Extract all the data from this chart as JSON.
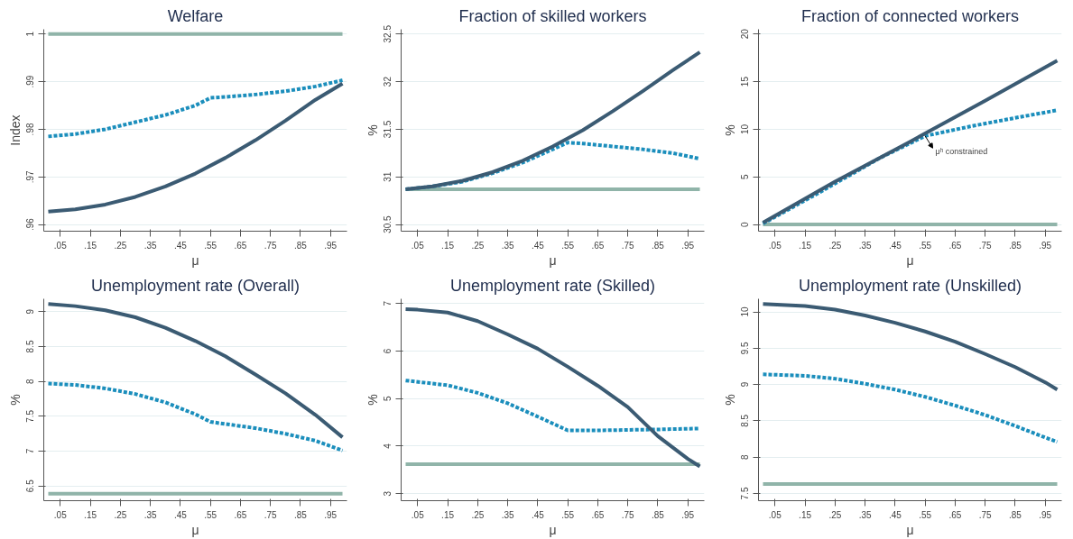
{
  "chart_data": [
    {
      "type": "line",
      "title": "Welfare",
      "xlabel": "μ",
      "ylabel": "Index",
      "grid": "y",
      "xlim": [
        -0.005,
        1.005
      ],
      "xticks": [
        {
          "value": 0.05,
          "label": ".05"
        },
        {
          "value": 0.15,
          "label": ".15"
        },
        {
          "value": 0.25,
          "label": ".25"
        },
        {
          "value": 0.35,
          "label": ".35"
        },
        {
          "value": 0.45,
          "label": ".45"
        },
        {
          "value": 0.55,
          "label": ".55"
        },
        {
          "value": 0.65,
          "label": ".65"
        },
        {
          "value": 0.75,
          "label": ".75"
        },
        {
          "value": 0.85,
          "label": ".85"
        },
        {
          "value": 0.95,
          "label": ".95"
        }
      ],
      "ylim": [
        0.9586,
        1.001
      ],
      "yticks": [
        {
          "value": 0.96,
          "label": ".96"
        },
        {
          "value": 0.97,
          "label": ".97"
        },
        {
          "value": 0.98,
          "label": ".98"
        },
        {
          "value": 0.99,
          "label": ".99"
        },
        1
      ],
      "series": [
        {
          "color": "#90b4a9",
          "line_style": "solid",
          "x": [
            0.01,
            0.99
          ],
          "values": [
            1.0,
            1.0
          ]
        },
        {
          "color": "#1b8ebc",
          "line_style": "dashed",
          "x": [
            0.01,
            0.1,
            0.2,
            0.3,
            0.4,
            0.5,
            0.55,
            0.6,
            0.7,
            0.8,
            0.9,
            0.99
          ],
          "values": [
            0.9785,
            0.979,
            0.98,
            0.9815,
            0.983,
            0.985,
            0.9866,
            0.9868,
            0.9873,
            0.988,
            0.989,
            0.9903
          ]
        },
        {
          "color": "#3b5b73",
          "line_style": "solid",
          "x": [
            0.01,
            0.1,
            0.2,
            0.3,
            0.4,
            0.5,
            0.6,
            0.7,
            0.8,
            0.9,
            0.99
          ],
          "values": [
            0.9627,
            0.9632,
            0.9642,
            0.9658,
            0.968,
            0.9707,
            0.974,
            0.9777,
            0.9818,
            0.9862,
            0.9896
          ]
        }
      ]
    },
    {
      "type": "line",
      "title": "Fraction of skilled workers",
      "xlabel": "μ",
      "ylabel": "%",
      "grid": "y",
      "xlim": [
        -0.005,
        1.005
      ],
      "xticks": [
        {
          "value": 0.05,
          "label": ".05"
        },
        {
          "value": 0.15,
          "label": ".15"
        },
        {
          "value": 0.25,
          "label": ".25"
        },
        {
          "value": 0.35,
          "label": ".35"
        },
        {
          "value": 0.45,
          "label": ".45"
        },
        {
          "value": 0.55,
          "label": ".55"
        },
        {
          "value": 0.65,
          "label": ".65"
        },
        {
          "value": 0.75,
          "label": ".75"
        },
        {
          "value": 0.85,
          "label": ".85"
        },
        {
          "value": 0.95,
          "label": ".95"
        }
      ],
      "ylim": [
        30.43,
        32.55
      ],
      "yticks": [
        30.5,
        31,
        31.5,
        32,
        32.5
      ],
      "series": [
        {
          "color": "#90b4a9",
          "line_style": "solid",
          "x": [
            0.01,
            0.99
          ],
          "values": [
            30.87,
            30.87
          ]
        },
        {
          "color": "#1b8ebc",
          "line_style": "dashed",
          "x": [
            0.01,
            0.1,
            0.2,
            0.3,
            0.4,
            0.5,
            0.55,
            0.6,
            0.7,
            0.8,
            0.9,
            0.99
          ],
          "values": [
            30.87,
            30.9,
            30.95,
            31.04,
            31.15,
            31.29,
            31.36,
            31.35,
            31.32,
            31.29,
            31.25,
            31.19
          ]
        },
        {
          "color": "#3b5b73",
          "line_style": "solid",
          "x": [
            0.01,
            0.1,
            0.2,
            0.3,
            0.4,
            0.5,
            0.6,
            0.7,
            0.8,
            0.9,
            0.99
          ],
          "values": [
            30.87,
            30.9,
            30.96,
            31.05,
            31.17,
            31.32,
            31.49,
            31.69,
            31.9,
            32.12,
            32.31
          ]
        }
      ]
    },
    {
      "type": "line",
      "title": "Fraction of connected workers",
      "xlabel": "μ",
      "ylabel": "%",
      "grid": "y",
      "xlim": [
        -0.005,
        1.005
      ],
      "xticks": [
        {
          "value": 0.05,
          "label": ".05"
        },
        {
          "value": 0.15,
          "label": ".15"
        },
        {
          "value": 0.25,
          "label": ".25"
        },
        {
          "value": 0.35,
          "label": ".35"
        },
        {
          "value": 0.45,
          "label": ".45"
        },
        {
          "value": 0.55,
          "label": ".55"
        },
        {
          "value": 0.65,
          "label": ".65"
        },
        {
          "value": 0.75,
          "label": ".75"
        },
        {
          "value": 0.85,
          "label": ".85"
        },
        {
          "value": 0.95,
          "label": ".95"
        }
      ],
      "ylim": [
        -0.7,
        20.5
      ],
      "yticks": [
        0,
        5,
        10,
        15,
        20
      ],
      "annotations": [
        {
          "text": "μʰ constrained",
          "x": 0.55,
          "y": 9.3
        }
      ],
      "series": [
        {
          "color": "#90b4a9",
          "line_style": "solid",
          "x": [
            0.01,
            0.99
          ],
          "values": [
            0,
            0
          ]
        },
        {
          "color": "#1b8ebc",
          "line_style": "dashed",
          "x": [
            0.01,
            0.2,
            0.4,
            0.55,
            0.7,
            0.85,
            0.99
          ],
          "values": [
            0.1,
            3.4,
            7.0,
            9.3,
            10.3,
            11.2,
            12.0
          ]
        },
        {
          "color": "#3b5b73",
          "line_style": "solid",
          "x": [
            0.01,
            0.25,
            0.5,
            0.75,
            0.99
          ],
          "values": [
            0.2,
            4.5,
            8.7,
            13.0,
            17.2
          ]
        }
      ]
    },
    {
      "type": "line",
      "title": "Unemployment rate (Overall)",
      "xlabel": "μ",
      "ylabel": "%",
      "grid": "y",
      "xlim": [
        -0.005,
        1.005
      ],
      "xticks": [
        {
          "value": 0.05,
          "label": ".05"
        },
        {
          "value": 0.15,
          "label": ".15"
        },
        {
          "value": 0.25,
          "label": ".25"
        },
        {
          "value": 0.35,
          "label": ".35"
        },
        {
          "value": 0.45,
          "label": ".45"
        },
        {
          "value": 0.55,
          "label": ".55"
        },
        {
          "value": 0.65,
          "label": ".65"
        },
        {
          "value": 0.75,
          "label": ".75"
        },
        {
          "value": 0.85,
          "label": ".85"
        },
        {
          "value": 0.95,
          "label": ".95"
        }
      ],
      "ylim": [
        6.29,
        9.185
      ],
      "yticks": [
        6.5,
        7,
        7.5,
        8,
        8.5,
        9
      ],
      "series": [
        {
          "color": "#90b4a9",
          "line_style": "solid",
          "x": [
            0.01,
            0.99
          ],
          "values": [
            6.39,
            6.39
          ]
        },
        {
          "color": "#1b8ebc",
          "line_style": "dashed",
          "x": [
            0.01,
            0.1,
            0.2,
            0.3,
            0.4,
            0.5,
            0.55,
            0.6,
            0.7,
            0.8,
            0.9,
            0.99
          ],
          "values": [
            7.97,
            7.95,
            7.9,
            7.82,
            7.7,
            7.53,
            7.42,
            7.39,
            7.33,
            7.25,
            7.15,
            7.01
          ]
        },
        {
          "color": "#3b5b73",
          "line_style": "solid",
          "x": [
            0.01,
            0.1,
            0.2,
            0.3,
            0.4,
            0.5,
            0.6,
            0.7,
            0.8,
            0.9,
            0.99
          ],
          "values": [
            9.11,
            9.08,
            9.02,
            8.92,
            8.77,
            8.58,
            8.36,
            8.1,
            7.83,
            7.52,
            7.2
          ]
        }
      ]
    },
    {
      "type": "line",
      "title": "Unemployment rate (Skilled)",
      "xlabel": "μ",
      "ylabel": "%",
      "grid": "y",
      "xlim": [
        -0.005,
        1.005
      ],
      "xticks": [
        {
          "value": 0.05,
          "label": ".05"
        },
        {
          "value": 0.15,
          "label": ".15"
        },
        {
          "value": 0.25,
          "label": ".25"
        },
        {
          "value": 0.35,
          "label": ".35"
        },
        {
          "value": 0.45,
          "label": ".45"
        },
        {
          "value": 0.55,
          "label": ".55"
        },
        {
          "value": 0.65,
          "label": ".65"
        },
        {
          "value": 0.75,
          "label": ".75"
        },
        {
          "value": 0.85,
          "label": ".85"
        },
        {
          "value": 0.95,
          "label": ".95"
        }
      ],
      "ylim": [
        2.85,
        7.1
      ],
      "yticks": [
        3,
        4,
        5,
        6,
        7
      ],
      "series": [
        {
          "color": "#90b4a9",
          "line_style": "solid",
          "x": [
            0.01,
            0.99
          ],
          "values": [
            3.62,
            3.62
          ]
        },
        {
          "color": "#1b8ebc",
          "line_style": "dashed",
          "x": [
            0.01,
            0.15,
            0.25,
            0.35,
            0.45,
            0.55,
            0.65,
            0.75,
            0.85,
            0.99
          ],
          "values": [
            5.38,
            5.28,
            5.12,
            4.9,
            4.62,
            4.33,
            4.33,
            4.34,
            4.35,
            4.37
          ]
        },
        {
          "color": "#3b5b73",
          "line_style": "solid",
          "x": [
            0.01,
            0.05,
            0.15,
            0.25,
            0.35,
            0.45,
            0.55,
            0.65,
            0.75,
            0.85,
            0.95,
            0.99
          ],
          "values": [
            6.88,
            6.87,
            6.81,
            6.63,
            6.35,
            6.05,
            5.67,
            5.27,
            4.82,
            4.21,
            3.73,
            3.57
          ]
        }
      ]
    },
    {
      "type": "line",
      "title": "Unemployment rate (Unskilled)",
      "xlabel": "μ",
      "ylabel": "%",
      "grid": "y",
      "xlim": [
        -0.005,
        1.005
      ],
      "xticks": [
        {
          "value": 0.05,
          "label": ".05"
        },
        {
          "value": 0.15,
          "label": ".15"
        },
        {
          "value": 0.25,
          "label": ".25"
        },
        {
          "value": 0.35,
          "label": ".35"
        },
        {
          "value": 0.45,
          "label": ".45"
        },
        {
          "value": 0.55,
          "label": ".55"
        },
        {
          "value": 0.65,
          "label": ".65"
        },
        {
          "value": 0.75,
          "label": ".75"
        },
        {
          "value": 0.85,
          "label": ".85"
        },
        {
          "value": 0.95,
          "label": ".95"
        }
      ],
      "ylim": [
        7.4,
        10.18
      ],
      "yticks": [
        7.5,
        8,
        8.5,
        9,
        9.5,
        10
      ],
      "series": [
        {
          "color": "#90b4a9",
          "line_style": "solid",
          "x": [
            0.01,
            0.99
          ],
          "values": [
            7.63,
            7.63
          ]
        },
        {
          "color": "#1b8ebc",
          "line_style": "dashed",
          "x": [
            0.01,
            0.15,
            0.25,
            0.35,
            0.45,
            0.55,
            0.65,
            0.75,
            0.85,
            0.95,
            0.99
          ],
          "values": [
            9.14,
            9.12,
            9.08,
            9.01,
            8.93,
            8.83,
            8.71,
            8.58,
            8.43,
            8.27,
            8.21
          ]
        },
        {
          "color": "#3b5b73",
          "line_style": "solid",
          "x": [
            0.01,
            0.15,
            0.25,
            0.35,
            0.45,
            0.55,
            0.65,
            0.75,
            0.85,
            0.95,
            0.99
          ],
          "values": [
            10.11,
            10.08,
            10.03,
            9.95,
            9.85,
            9.73,
            9.59,
            9.42,
            9.24,
            9.03,
            8.93
          ]
        }
      ]
    }
  ]
}
